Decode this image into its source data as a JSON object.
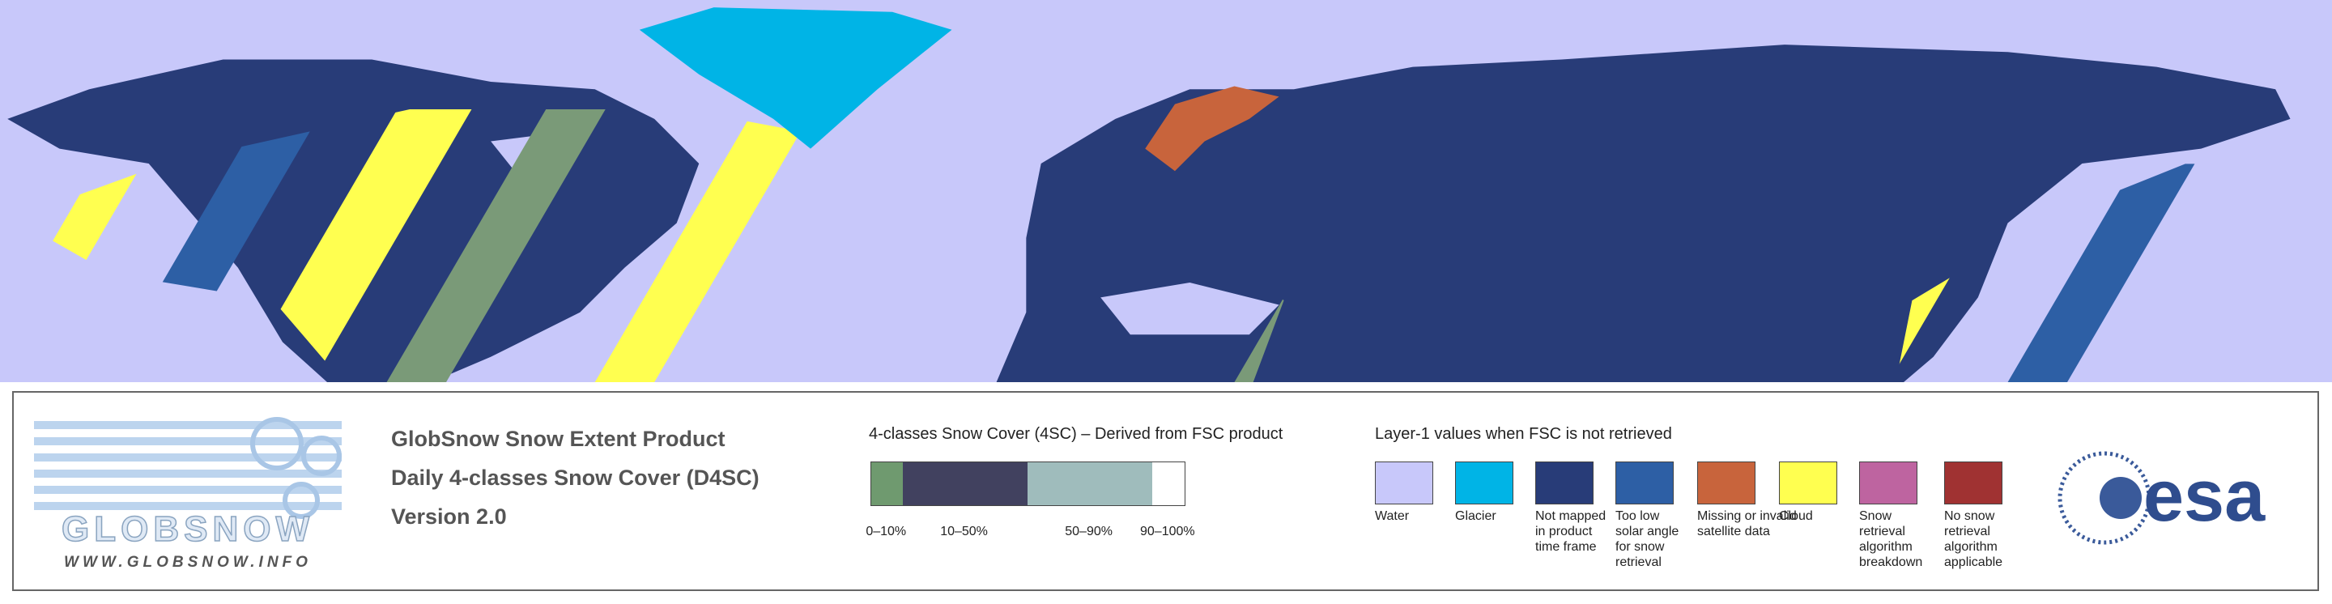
{
  "logo": {
    "name": "GLOBSNOW",
    "url": "WWW.GLOBSNOW.INFO"
  },
  "product": {
    "title": "GlobSnow Snow Extent Product",
    "subtitle": "Daily 4-classes Snow Cover (D4SC)",
    "version": "Version 2.0"
  },
  "snow_cover": {
    "title": "4-classes Snow Cover (4SC) – Derived from FSC product",
    "classes": [
      {
        "label": "0–10%",
        "color": "#6f9a6f"
      },
      {
        "label": "10–50%",
        "color": "#41415f"
      },
      {
        "label": "50–90%",
        "color": "#9fbcbc"
      },
      {
        "label": "90–100%",
        "color": "#ffffff"
      }
    ]
  },
  "layer1": {
    "title": "Layer-1 values when FSC is not retrieved",
    "items": [
      {
        "label": "Water",
        "color": "#c8c8fa"
      },
      {
        "label": "Glacier",
        "color": "#00b4e6"
      },
      {
        "label": "Not mapped in product time frame",
        "color": "#283c78"
      },
      {
        "label": "Too low solar angle for snow retrieval",
        "color": "#2d5fa5"
      },
      {
        "label": "Missing or invalid satellite data",
        "color": "#c8643c"
      },
      {
        "label": "Cloud",
        "color": "#ffff50"
      },
      {
        "label": "Snow retrieval algorithm breakdown",
        "color": "#be64a0"
      },
      {
        "label": "No snow retrieval algorithm applicable",
        "color": "#a03232"
      }
    ]
  },
  "agency": "esa"
}
